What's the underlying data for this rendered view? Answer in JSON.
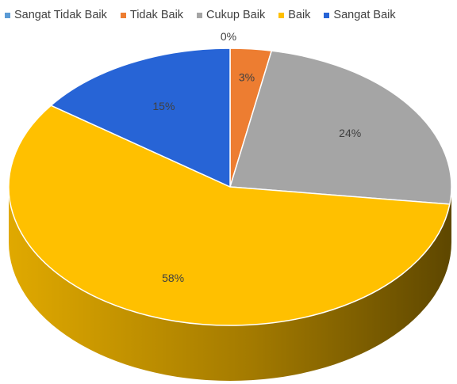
{
  "chart_data": {
    "type": "pie",
    "categories": [
      "Sangat Tidak Baik",
      "Tidak Baik",
      "Cukup Baik",
      "Baik",
      "Sangat Baik"
    ],
    "values": [
      0,
      3,
      24,
      58,
      15
    ],
    "data_labels": [
      "0%",
      "3%",
      "24%",
      "58%",
      "15%"
    ],
    "colors": [
      "#5B9BD5",
      "#ED7D31",
      "#A5A5A5",
      "#FFC000",
      "#2764D6"
    ],
    "legend_position": "top",
    "style": "3d"
  }
}
